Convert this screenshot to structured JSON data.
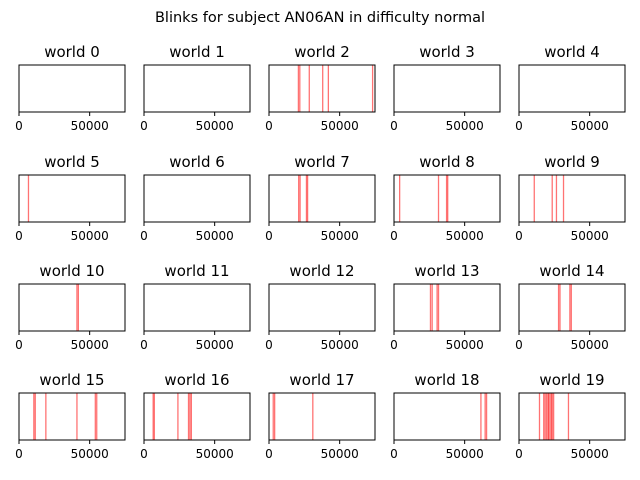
{
  "chart_data": {
    "type": "event-plot",
    "title": "Blinks for subject AN06AN in difficulty normal",
    "xlim": [
      0,
      75000
    ],
    "xticks": [
      0,
      50000
    ],
    "yticks": [],
    "event_color": "#ff0000",
    "grid": false,
    "panels": [
      {
        "title": "world 0",
        "events": []
      },
      {
        "title": "world 1",
        "events": []
      },
      {
        "title": "world 2",
        "events": [
          20800,
          21800,
          28500,
          38000,
          42000,
          73300
        ]
      },
      {
        "title": "world 3",
        "events": []
      },
      {
        "title": "world 4",
        "events": []
      },
      {
        "title": "world 5",
        "events": [
          6700
        ]
      },
      {
        "title": "world 6",
        "events": []
      },
      {
        "title": "world 7",
        "events": [
          21000,
          22000,
          26500,
          27300
        ]
      },
      {
        "title": "world 8",
        "events": [
          4000,
          31500,
          37200,
          38000
        ]
      },
      {
        "title": "world 9",
        "events": [
          10800,
          23500,
          26500,
          31500
        ]
      },
      {
        "title": "world 10",
        "events": [
          41000,
          42000
        ]
      },
      {
        "title": "world 11",
        "events": []
      },
      {
        "title": "world 12",
        "events": []
      },
      {
        "title": "world 13",
        "events": [
          25800,
          27000,
          30500,
          31500
        ]
      },
      {
        "title": "world 14",
        "events": [
          28000,
          29000,
          36000,
          37000
        ]
      },
      {
        "title": "world 15",
        "events": [
          10500,
          11500,
          19000,
          41000,
          54000,
          55000
        ]
      },
      {
        "title": "world 16",
        "events": [
          6500,
          7300,
          24000,
          31500,
          32500,
          33500
        ]
      },
      {
        "title": "world 17",
        "events": [
          3000,
          4000,
          31000
        ]
      },
      {
        "title": "world 18",
        "events": [
          61500,
          64500,
          65500
        ]
      },
      {
        "title": "world 19",
        "events": [
          14500,
          17500,
          18500,
          19500,
          20500,
          21000,
          22000,
          23000,
          23500,
          24500,
          35000
        ]
      }
    ]
  }
}
